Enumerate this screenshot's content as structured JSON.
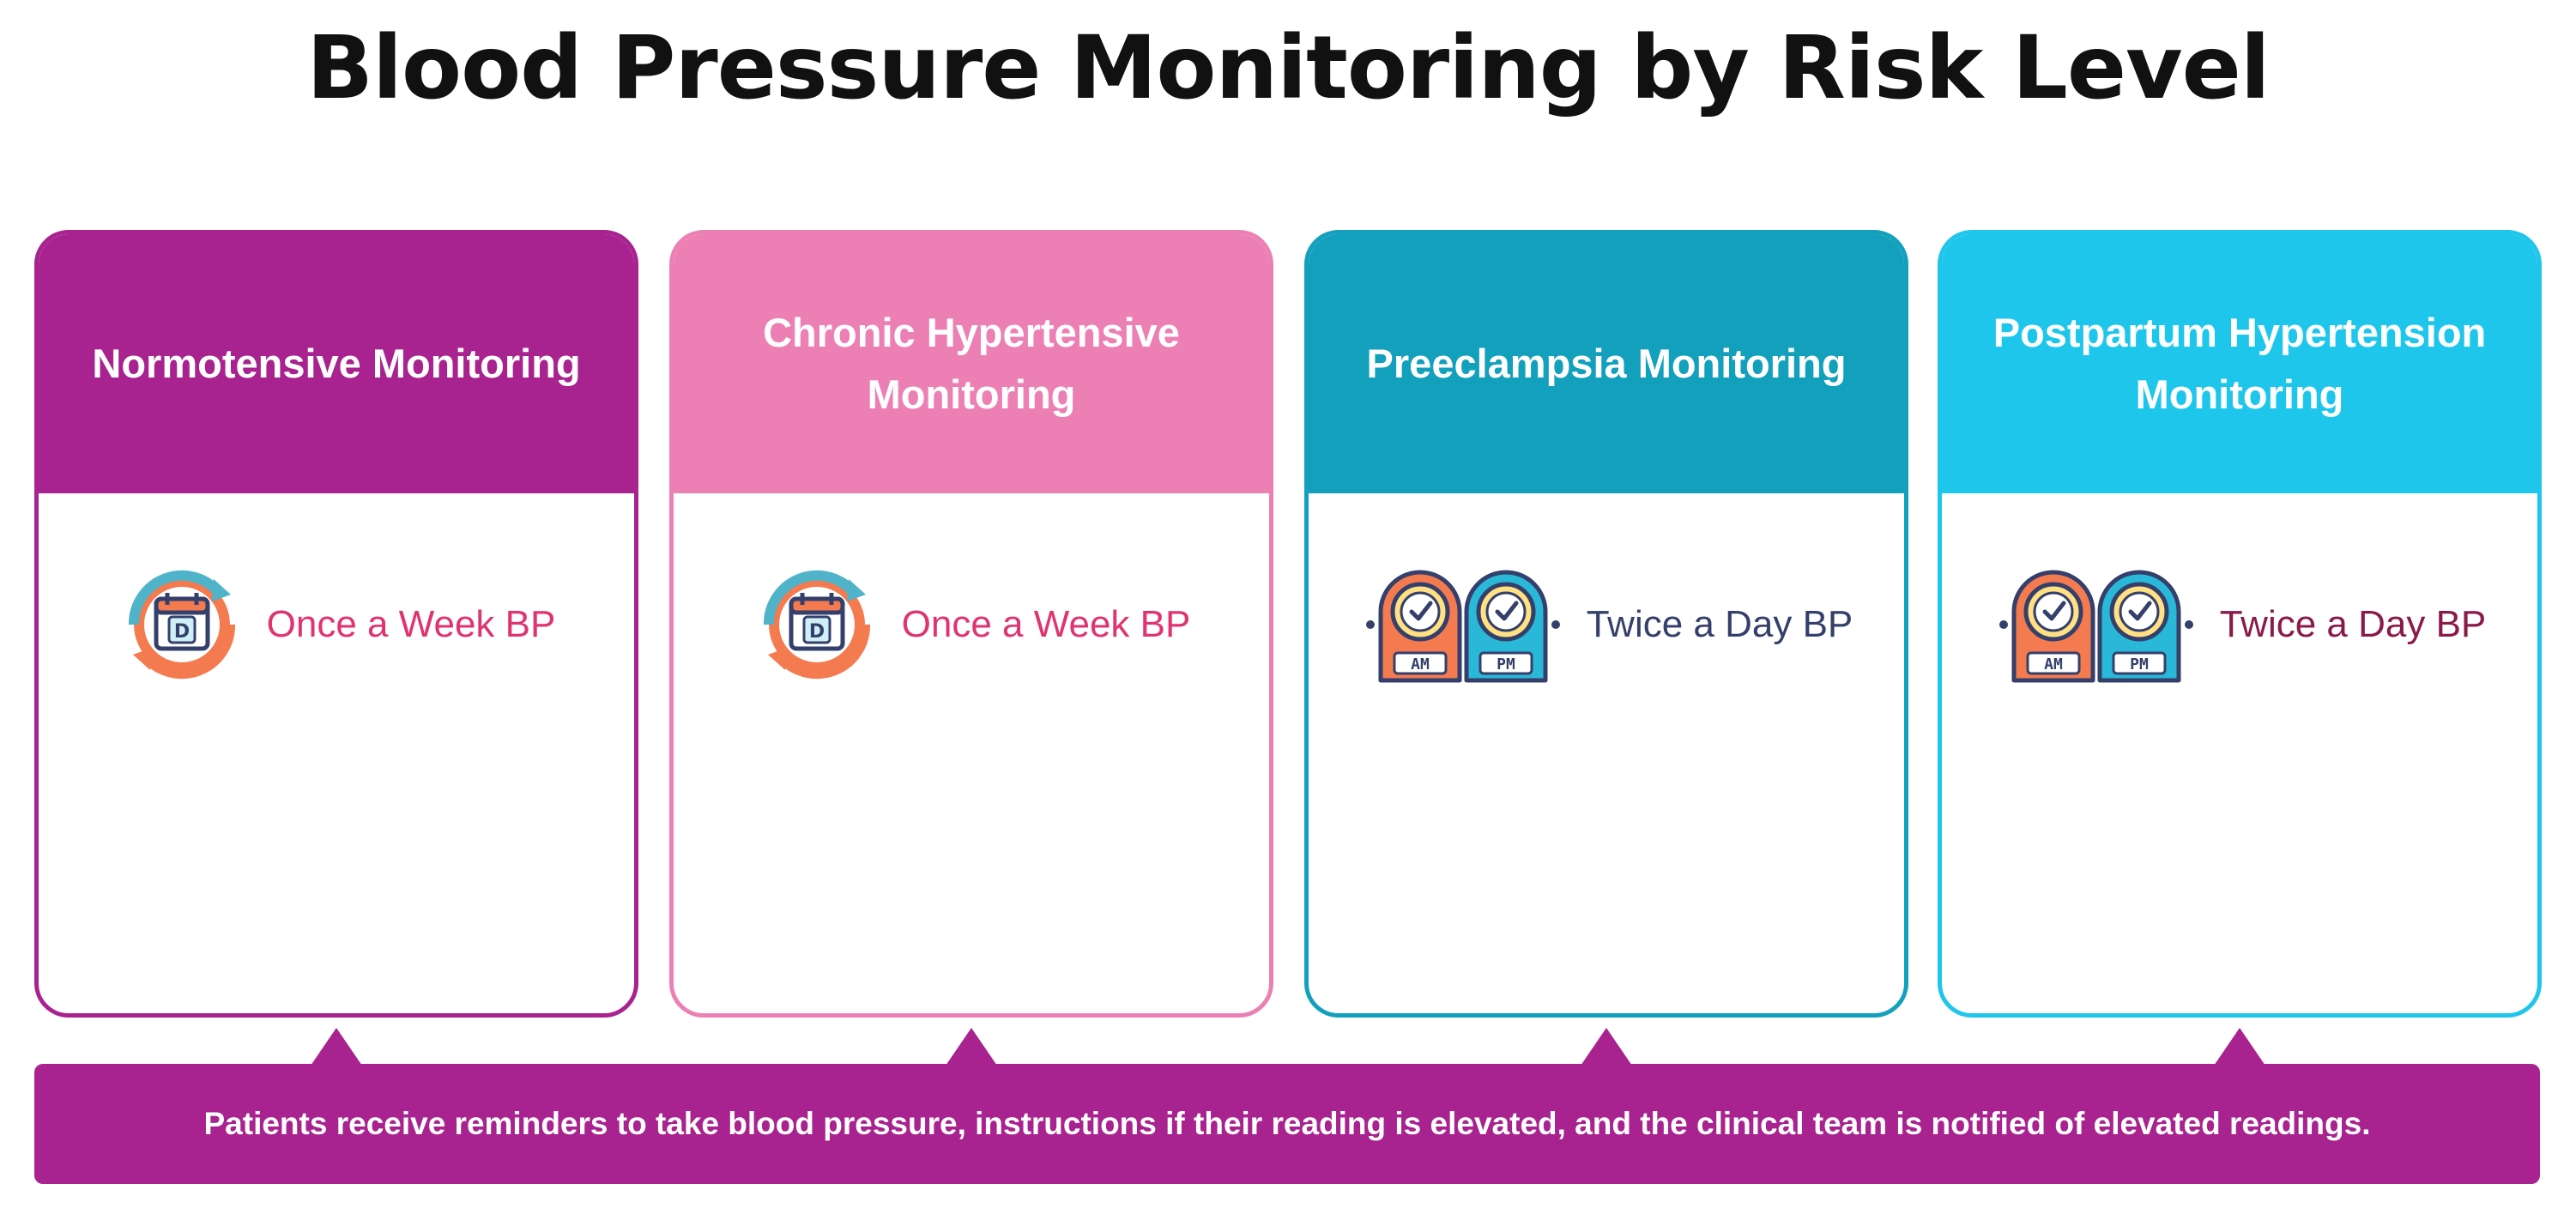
{
  "title": "Blood Pressure Monitoring by Risk Level",
  "cards": [
    {
      "title": "Normotensive Monitoring",
      "frequency": "Once a Week BP",
      "icon": "calendar-weekly-icon",
      "color": "#a8238f",
      "text_color": "#e0336f"
    },
    {
      "title": "Chronic Hypertensive Monitoring",
      "frequency": "Once a Week BP",
      "icon": "calendar-weekly-icon",
      "color": "#ec80b5",
      "text_color": "#e0336f"
    },
    {
      "title": "Preeclampsia Monitoring",
      "frequency": "Twice a Day BP",
      "icon": "am-pm-clocks-icon",
      "color": "#12a0bd",
      "text_color": "#34406b"
    },
    {
      "title": "Postpartum Hypertension Monitoring",
      "frequency": "Twice a Day BP",
      "icon": "am-pm-clocks-icon",
      "color": "#1ec6ec",
      "text_color": "#8a1a4a"
    }
  ],
  "icon_labels": {
    "am": "AM",
    "pm": "PM",
    "day": "D"
  },
  "banner": {
    "text": "Patients receive reminders to take blood pressure, instructions if their reading is elevated, and the clinical team is notified of elevated readings."
  }
}
